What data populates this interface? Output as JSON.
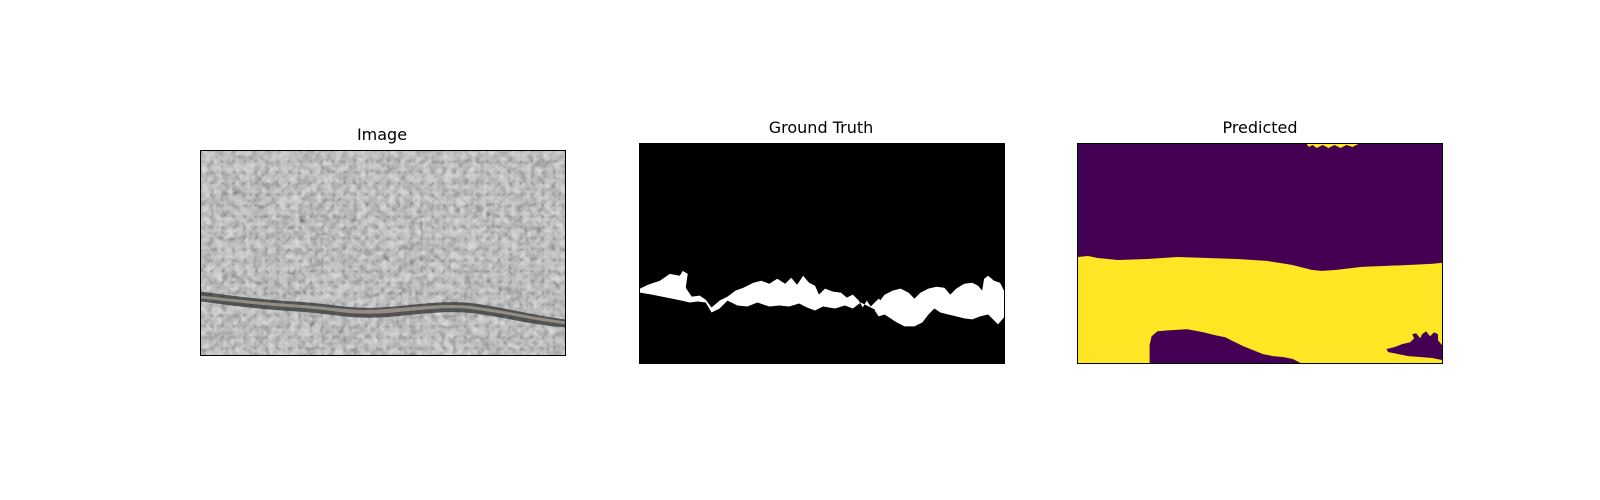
{
  "panels": {
    "image": {
      "title": "Image"
    },
    "ground_truth": {
      "title": "Ground Truth"
    },
    "predicted": {
      "title": "Predicted"
    }
  },
  "colors": {
    "background": "#ffffff",
    "mask_black": "#000000",
    "mask_white": "#ffffff",
    "viridis_low": "#440154",
    "viridis_high": "#fde725",
    "asphalt_base": "#6f7174",
    "asphalt_dark": "#3e4043",
    "asphalt_light": "#a9abad",
    "crack_fill": "#8a857c"
  }
}
